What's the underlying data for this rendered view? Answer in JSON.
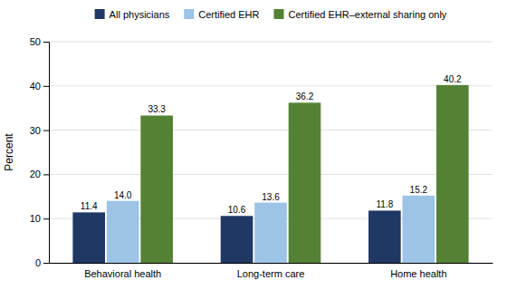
{
  "chart_data": {
    "type": "bar",
    "categories": [
      "Behavioral health",
      "Long-term care",
      "Home health"
    ],
    "series": [
      {
        "name": "All physicians",
        "color": "#1f3864",
        "values": [
          11.4,
          10.6,
          11.8
        ]
      },
      {
        "name": "Certified EHR",
        "color": "#9dc3e6",
        "values": [
          14.0,
          13.6,
          15.2
        ],
        "value_labels": [
          "14.0",
          "13.6",
          "15.2"
        ]
      },
      {
        "name": "Certified EHR–external sharing only",
        "color": "#548235",
        "values": [
          33.3,
          36.2,
          40.2
        ]
      }
    ],
    "ylabel": "Percent",
    "ylim": [
      0,
      50
    ],
    "yticks": [
      0,
      10,
      20,
      30,
      40,
      50
    ],
    "grid": true,
    "legend": "top",
    "data_labels": true
  }
}
